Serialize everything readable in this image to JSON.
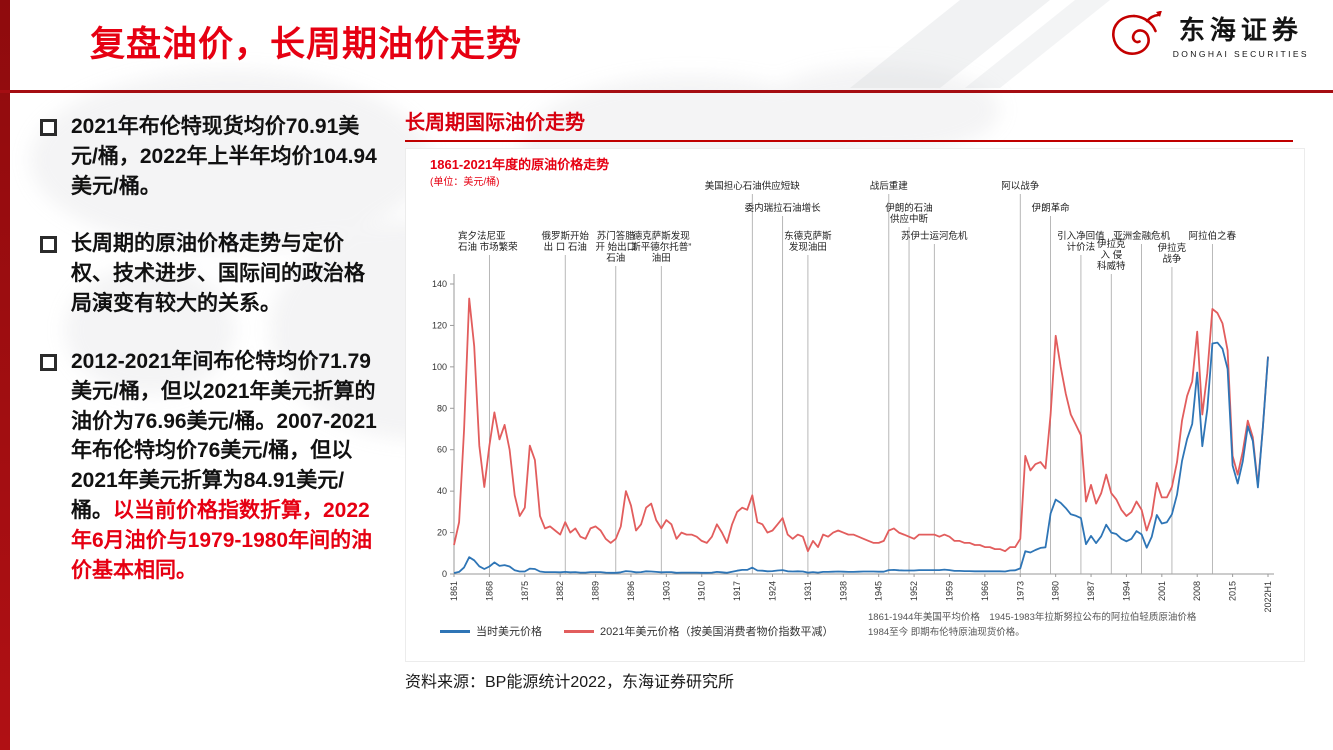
{
  "page": {
    "header": {
      "title": "复盘油价，长周期油价走势"
    },
    "logo": {
      "name_cn": "东海证券",
      "name_en": "DONGHAI SECURITIES"
    },
    "bullets": [
      {
        "text": "2021年布伦特现货均价70.91美元/桶，2022年上半年均价104.94美元/桶。",
        "highlight": ""
      },
      {
        "text": "长周期的原油价格走势与定价权、技术进步、国际间的政治格局演变有较大的关系。",
        "highlight": ""
      },
      {
        "text": "2012-2021年间布伦特均价71.79美元/桶，但以2021年美元折算的油价为76.96美元/桶。2007-2021年布伦特均价76美元/桶，但以2021年美元折算为84.91美元/桶。",
        "highlight": "以当前价格指数折算，2022年6月油价与1979-1980年间的油价基本相同。"
      }
    ],
    "section_title": "长周期国际油价走势",
    "source": "资料来源：BP能源统计2022，东海证券研究所"
  },
  "chart_data": {
    "type": "line",
    "title": "1861-2021年度的原油价格走势",
    "unit_label": "(单位：美元/桶)",
    "x_start": 1861,
    "ylim": [
      0,
      140
    ],
    "y_ticks": [
      0,
      20,
      40,
      60,
      80,
      100,
      120,
      140
    ],
    "x_tick_years": [
      1861,
      1868,
      1875,
      1882,
      1889,
      1896,
      1903,
      1910,
      1917,
      1924,
      1931,
      1938,
      1945,
      1952,
      1959,
      1966,
      1973,
      1980,
      1987,
      1994,
      2001,
      2008,
      2015,
      2022
    ],
    "x_tick_labels": [
      "1861",
      "1868",
      "1875",
      "1882",
      "1889",
      "1896",
      "1903",
      "1910",
      "1917",
      "1924",
      "1931",
      "1938",
      "1945",
      "1952",
      "1959",
      "1966",
      "1973",
      "1980",
      "1987",
      "1994",
      "2001",
      "2008",
      "2015",
      "2022H1"
    ],
    "series": [
      {
        "name": "当时美元价格",
        "color": "#2e75b6",
        "values": [
          0.5,
          1,
          3.2,
          8.1,
          6.6,
          3.7,
          2.4,
          3.6,
          5.6,
          3.9,
          4.3,
          3.6,
          1.8,
          1.2,
          1.2,
          2.6,
          2.4,
          1.2,
          0.9,
          0.9,
          0.9,
          0.8,
          1,
          0.8,
          0.9,
          0.7,
          0.7,
          0.9,
          0.9,
          0.9,
          0.7,
          0.6,
          0.6,
          0.8,
          1.4,
          1.2,
          0.8,
          0.9,
          1.3,
          1.2,
          1,
          0.8,
          0.9,
          0.9,
          0.6,
          0.7,
          0.7,
          0.7,
          0.7,
          0.6,
          0.6,
          0.7,
          1,
          0.8,
          0.6,
          1.1,
          1.6,
          2,
          2,
          3.1,
          1.7,
          1.6,
          1.3,
          1.4,
          1.7,
          1.9,
          1.3,
          1.2,
          1.3,
          1.2,
          0.7,
          0.9,
          0.7,
          1,
          1,
          1.1,
          1.2,
          1.1,
          1,
          1,
          1.1,
          1.2,
          1.2,
          1.2,
          1.1,
          1.1,
          1.9,
          2,
          1.8,
          1.7,
          1.7,
          1.7,
          1.9,
          1.9,
          1.9,
          1.9,
          1.9,
          2.1,
          1.9,
          1.5,
          1.5,
          1.4,
          1.4,
          1.3,
          1.3,
          1.3,
          1.3,
          1.3,
          1.3,
          1.2,
          1.7,
          1.8,
          2.7,
          11,
          10.4,
          11.6,
          12.6,
          12.9,
          29.2,
          35.9,
          34.3,
          31.8,
          28.8,
          28.1,
          27,
          14.4,
          18.4,
          14.9,
          18.2,
          23.8,
          20,
          19.3,
          17,
          15.8,
          17,
          20.7,
          19.1,
          12.7,
          17.9,
          28.5,
          24.4,
          25,
          28.8,
          38.3,
          54.5,
          65.1,
          72.4,
          97.3,
          61.7,
          79.5,
          111.3,
          111.7,
          108.7,
          99,
          52.4,
          43.7,
          54.2,
          71.3,
          64.2,
          41.8,
          70.9,
          104.9
        ]
      },
      {
        "name": "2021年美元价格（按美国消费者物价指数平减）",
        "color": "#e25d5d",
        "values": [
          14,
          25,
          70,
          133,
          110,
          62,
          42,
          62,
          78,
          65,
          72,
          60,
          38,
          28,
          32,
          62,
          55,
          28,
          22,
          23,
          21,
          19,
          25,
          20,
          22,
          18,
          17,
          22,
          23,
          21,
          17,
          15,
          17,
          23,
          40,
          33,
          21,
          24,
          32,
          34,
          26,
          22,
          26,
          24,
          17,
          20,
          19,
          19,
          18,
          16,
          15,
          18,
          24,
          20,
          15,
          24,
          30,
          32,
          31,
          38,
          25,
          24,
          20,
          21,
          24,
          27,
          19,
          17,
          19,
          18,
          11,
          16,
          13,
          19,
          18,
          20,
          21,
          20,
          19,
          19,
          18,
          17,
          16,
          15,
          15,
          16,
          21,
          22,
          20,
          19,
          18,
          17,
          19,
          19,
          19,
          19,
          18,
          19,
          18,
          16,
          16,
          15,
          15,
          14,
          14,
          13,
          13,
          12,
          12,
          11,
          13,
          13,
          17,
          57,
          50,
          53,
          54,
          51,
          77,
          115,
          100,
          87,
          77,
          72,
          67,
          35,
          43,
          34,
          39,
          48,
          39,
          36,
          31,
          28,
          30,
          35,
          31,
          21,
          28,
          44,
          37,
          37,
          42,
          54,
          74,
          86,
          93,
          117,
          77,
          97,
          128,
          126,
          121,
          108,
          57,
          48,
          59,
          74,
          66,
          43,
          71,
          105
        ]
      }
    ],
    "annotations": [
      {
        "year": 1868,
        "row": "d",
        "anchor": "start",
        "lines": [
          "宾夕法尼亚",
          "石油 市场繁荣"
        ]
      },
      {
        "year": 1883,
        "row": "c",
        "lines": [
          "俄罗斯开始",
          "出 口 石油"
        ]
      },
      {
        "year": 1893,
        "row": "c",
        "lines": [
          "苏门答腊",
          "开 始出口",
          "石油"
        ]
      },
      {
        "year": 1902,
        "row": "c",
        "lines": [
          "德克萨斯发现",
          "斯平德尔托普”",
          "油田"
        ]
      },
      {
        "year": 1920,
        "row": "a",
        "lines": [
          "美国担心石油供应短缺"
        ]
      },
      {
        "year": 1926,
        "row": "b",
        "lines": [
          "委内瑞拉石油增长"
        ]
      },
      {
        "year": 1931,
        "row": "c",
        "lines": [
          "东德克萨斯",
          "发现油田"
        ]
      },
      {
        "year": 1947,
        "row": "a",
        "lines": [
          "战后重建"
        ]
      },
      {
        "year": 1951,
        "row": "b",
        "lines": [
          "伊朗的石油",
          "供应中断"
        ]
      },
      {
        "year": 1956,
        "row": "c",
        "lines": [
          "苏伊士运河危机"
        ]
      },
      {
        "year": 1973,
        "row": "a",
        "lines": [
          "阿以战争"
        ]
      },
      {
        "year": 1979,
        "row": "b",
        "lines": [
          "伊朗革命"
        ]
      },
      {
        "year": 1985,
        "row": "c",
        "lines": [
          "引入净回值",
          "计价法"
        ]
      },
      {
        "year": 1991,
        "row": "d2",
        "lines": [
          "伊拉克",
          "入 侵",
          "科威特"
        ]
      },
      {
        "year": 1997,
        "row": "c",
        "lines": [
          "亚洲金融危机"
        ]
      },
      {
        "year": 2003,
        "row": "e",
        "lines": [
          "伊拉克",
          "战争"
        ]
      },
      {
        "year": 2011,
        "row": "c",
        "lines": [
          "阿拉伯之春"
        ]
      }
    ],
    "notes": [
      "1861-1944年美国平均价格　1945-1983年拉斯努拉公布的阿拉伯轻质原油价格",
      "1984至今 即期布伦特原油现货价格。"
    ],
    "legend_position": "bottom"
  }
}
